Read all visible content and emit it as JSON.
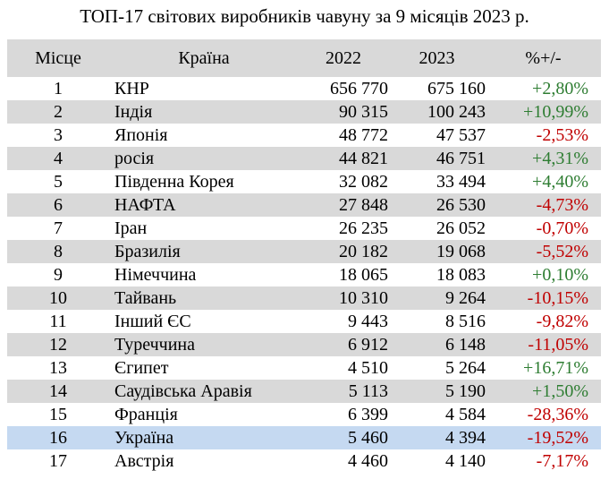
{
  "title": "ТОП-17 світових виробників чавуну за 9 місяців 2023 р.",
  "headers": [
    "Місце",
    "Країна",
    "2022",
    "2023",
    "%+/-"
  ],
  "colors": {
    "positive": "#2e7d32",
    "negative": "#c00000",
    "highlight": "#c5d9f1",
    "stripe": "#d9d9d9"
  },
  "rows": [
    [
      "1",
      "КНР",
      "656 770",
      "675 160",
      "+2,80%"
    ],
    [
      "2",
      "Індія",
      "90 315",
      "100 243",
      "+10,99%"
    ],
    [
      "3",
      "Японія",
      "48 772",
      "47 537",
      "-2,53%"
    ],
    [
      "4",
      "росія",
      "44 821",
      "46 751",
      "+4,31%"
    ],
    [
      "5",
      "Південна Корея",
      "32 082",
      "33 494",
      "+4,40%"
    ],
    [
      "6",
      "НАФТА",
      "27 848",
      "26 530",
      "-4,73%"
    ],
    [
      "7",
      "Іран",
      "26 235",
      "26 052",
      "-0,70%"
    ],
    [
      "8",
      "Бразилія",
      "20 182",
      "19 068",
      "-5,52%"
    ],
    [
      "9",
      "Німеччина",
      "18 065",
      "18 083",
      "+0,10%"
    ],
    [
      "10",
      "Тайвань",
      "10 310",
      "9 264",
      "-10,15%"
    ],
    [
      "11",
      "Інший ЄС",
      "9 443",
      "8 516",
      "-9,82%"
    ],
    [
      "12",
      "Туреччина",
      "6 912",
      "6 148",
      "-11,05%"
    ],
    [
      "13",
      "Єгипет",
      "4 510",
      "5 264",
      "+16,71%"
    ],
    [
      "14",
      "Саудівська Аравія",
      "5 113",
      "5 190",
      "+1,50%"
    ],
    [
      "15",
      "Франція",
      "6 399",
      "4 584",
      "-28,36%"
    ],
    [
      "16",
      "Україна",
      "5 460",
      "4 394",
      "-19,52%"
    ],
    [
      "17",
      "Австрія",
      "4 460",
      "4 140",
      "-7,17%"
    ]
  ]
}
